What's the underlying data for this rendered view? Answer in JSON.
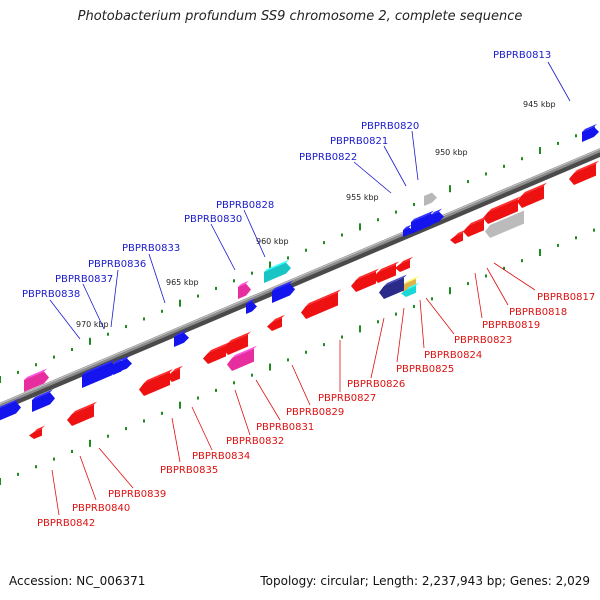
{
  "title": "Photobacterium profundum SS9 chromosome 2, complete sequence",
  "footer": {
    "accession": "Accession: NC_006371",
    "summary": "Topology: circular; Length: 2,237,943 bp; Genes: 2,029"
  },
  "colors": {
    "forward_label": "#1a1acc",
    "reverse_label": "#dd1111",
    "tick": "#1f8a1f",
    "backbone": "#7a7a7a"
  },
  "scale_labels": [
    "945 kbp",
    "950 kbp",
    "955 kbp",
    "960 kbp",
    "965 kbp",
    "970 kbp"
  ],
  "forward_genes": [
    "PBPRB0813",
    "PBPRB0820",
    "PBPRB0821",
    "PBPRB0822",
    "PBPRB0828",
    "PBPRB0830",
    "PBPRB0833",
    "PBPRB0836",
    "PBPRB0837",
    "PBPRB0838"
  ],
  "reverse_genes": [
    "PBPRB0817",
    "PBPRB0818",
    "PBPRB0819",
    "PBPRB0823",
    "PBPRB0824",
    "PBPRB0825",
    "PBPRB0826",
    "PBPRB0827",
    "PBPRB0829",
    "PBPRB0831",
    "PBPRB0832",
    "PBPRB0834",
    "PBPRB0835",
    "PBPRB0839",
    "PBPRB0840",
    "PBPRB0842"
  ]
}
